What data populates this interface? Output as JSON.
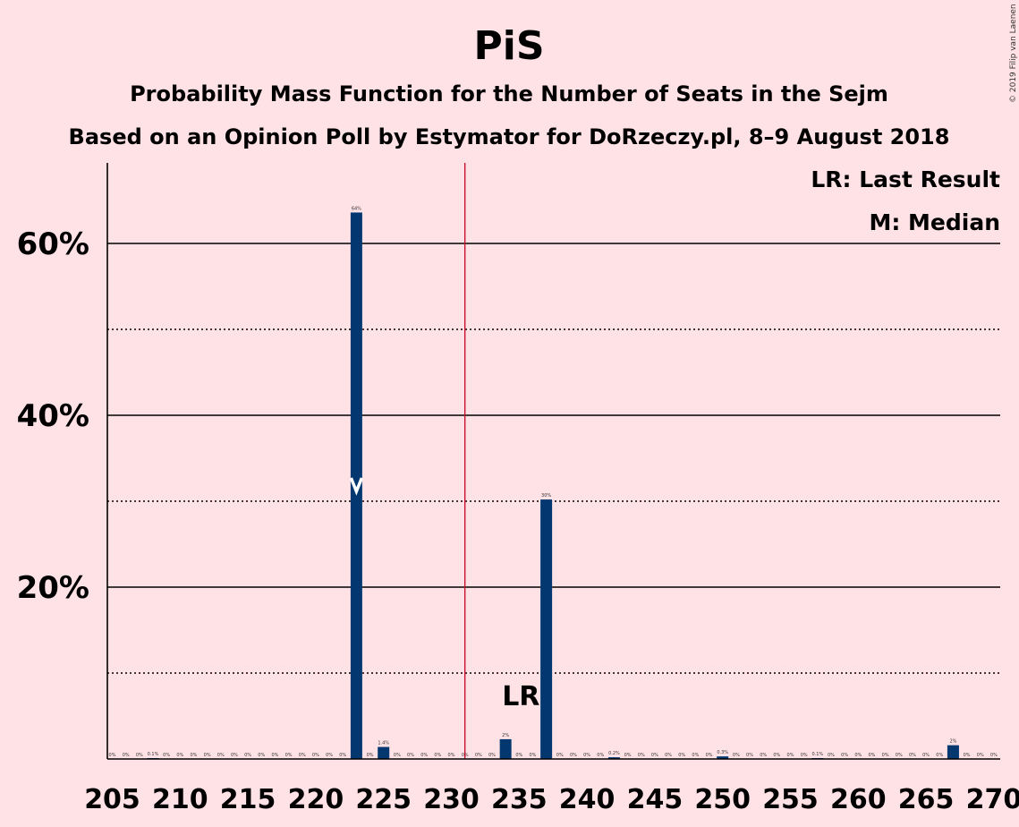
{
  "title": "PiS",
  "subtitle1": "Probability Mass Function for the Number of Seats in the Sejm",
  "subtitle2": "Based on an Opinion Poll by Estymator for DoRzeczy.pl, 8–9 August 2018",
  "copyright": "© 2019 Filip van Laenen",
  "legend": {
    "last_result": "LR: Last Result",
    "median": "M: Median"
  },
  "lr_marker": "LR",
  "median_marker": "M",
  "colors": {
    "bar": "#023770",
    "majority_line": "#C8102E",
    "background": "#FFE2E6",
    "text": "#2a0a0a"
  },
  "chart_data": {
    "type": "bar",
    "x": [
      205,
      206,
      207,
      208,
      209,
      210,
      211,
      212,
      213,
      214,
      215,
      216,
      217,
      218,
      219,
      220,
      221,
      222,
      223,
      224,
      225,
      226,
      227,
      228,
      229,
      230,
      231,
      232,
      233,
      234,
      235,
      236,
      237,
      238,
      239,
      240,
      241,
      242,
      243,
      244,
      245,
      246,
      247,
      248,
      249,
      250,
      251,
      252,
      253,
      254,
      255,
      256,
      257,
      258,
      259,
      260,
      261,
      262,
      263,
      264,
      265,
      266,
      267,
      268,
      269,
      270
    ],
    "values": [
      0,
      0,
      0,
      0.1,
      0,
      0,
      0,
      0,
      0,
      0,
      0,
      0,
      0,
      0,
      0,
      0,
      0,
      0,
      63.6,
      0,
      1.4,
      0,
      0,
      0,
      0,
      0,
      0,
      0,
      0,
      2.3,
      0,
      0,
      30.2,
      0,
      0,
      0,
      0,
      0.2,
      0,
      0,
      0,
      0,
      0,
      0,
      0,
      0.3,
      0,
      0,
      0,
      0,
      0,
      0,
      0.1,
      0,
      0,
      0,
      0,
      0,
      0,
      0,
      0,
      0,
      1.6,
      0,
      0,
      0
    ],
    "labels": [
      "0%",
      "0%",
      "0%",
      "0.1%",
      "0%",
      "0%",
      "0%",
      "0%",
      "0%",
      "0%",
      "0%",
      "0%",
      "0%",
      "0%",
      "0%",
      "0%",
      "0%",
      "0%",
      "64%",
      "0%",
      "1.4%",
      "0%",
      "0%",
      "0%",
      "0%",
      "0%",
      "0%",
      "0%",
      "0%",
      "2%",
      "0%",
      "0%",
      "30%",
      "0%",
      "0%",
      "0%",
      "0%",
      "0.2%",
      "0%",
      "0%",
      "0%",
      "0%",
      "0%",
      "0%",
      "0%",
      "0.3%",
      "0%",
      "0%",
      "0%",
      "0%",
      "0%",
      "0%",
      "0.1%",
      "0%",
      "0%",
      "0%",
      "0%",
      "0%",
      "0%",
      "0%",
      "0%",
      "0%",
      "2%",
      "0%",
      "0%",
      "0%"
    ],
    "xlim": [
      205,
      270
    ],
    "ylim": [
      0,
      70
    ],
    "xticks": [
      "205",
      "210",
      "215",
      "220",
      "225",
      "230",
      "235",
      "240",
      "245",
      "250",
      "255",
      "260",
      "265",
      "270"
    ],
    "yticks": [
      "20%",
      "40%",
      "60%"
    ],
    "solid_grid": [
      20,
      40,
      60
    ],
    "dotted_grid": [
      10,
      30,
      50
    ],
    "majority_line_x": 231,
    "last_result_x": 235,
    "median_x": 223,
    "legend_position": "top-right"
  }
}
